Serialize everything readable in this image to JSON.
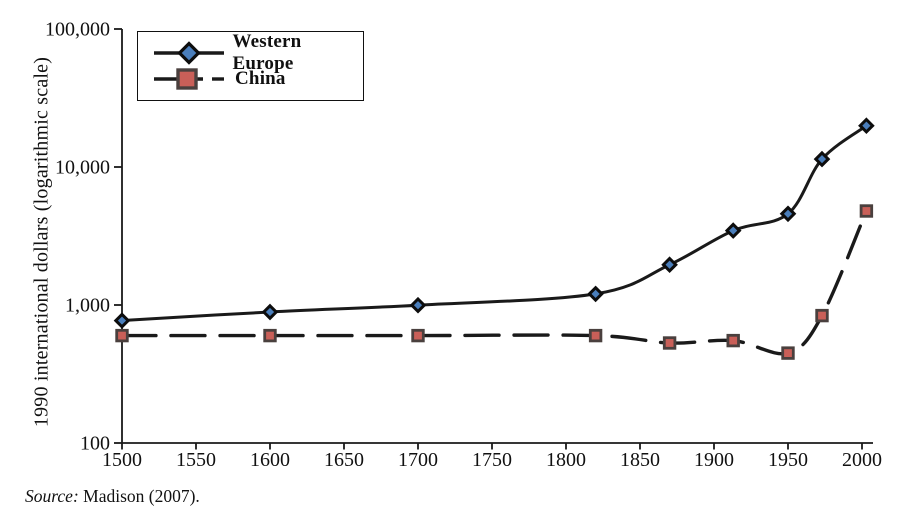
{
  "y_axis_title": "1990 international dollars (logarithmic scale)",
  "legend": {
    "items": [
      {
        "label": "Western Europe",
        "marker": "diamond-marker-icon"
      },
      {
        "label": "China",
        "marker": "square-marker-icon"
      }
    ]
  },
  "source": {
    "prefix": "Source:",
    "text": "Madison (2007)."
  },
  "colors": {
    "line": "#1a1a1a",
    "western_europe_marker_fill": "#4a7ebb",
    "western_europe_marker_stroke": "#0d0d0d",
    "china_marker_fill": "#c95f58",
    "china_marker_stroke": "#4a403e",
    "axis": "#1a1a1a",
    "text": "#111111"
  },
  "chart_data": {
    "type": "line",
    "title": "",
    "xlabel": "",
    "ylabel": "1990 international dollars (logarithmic scale)",
    "y_scale": "logarithmic",
    "ylim": [
      100,
      100000
    ],
    "xlim": [
      1500,
      2003
    ],
    "grid": false,
    "legend_position": "top-left",
    "x_ticks": [
      1500,
      1550,
      1600,
      1650,
      1700,
      1750,
      1800,
      1850,
      1900,
      1950,
      2000
    ],
    "y_ticks": [
      {
        "value": 100,
        "label": "100"
      },
      {
        "value": 1000,
        "label": "1,000"
      },
      {
        "value": 10000,
        "label": "10,000"
      },
      {
        "value": 100000,
        "label": "100,000"
      }
    ],
    "x": [
      1500,
      1600,
      1700,
      1820,
      1870,
      1913,
      1950,
      1973,
      2003
    ],
    "series": [
      {
        "name": "Western Europe",
        "line_style": "solid",
        "marker": "diamond",
        "values": [
          771,
          890,
          997,
          1204,
          1960,
          3458,
          4579,
          11416,
          19912
        ]
      },
      {
        "name": "China",
        "line_style": "long-dash",
        "marker": "square",
        "values": [
          600,
          600,
          600,
          600,
          530,
          552,
          448,
          838,
          4803
        ]
      }
    ],
    "source_note": "Source: Madison (2007)."
  }
}
